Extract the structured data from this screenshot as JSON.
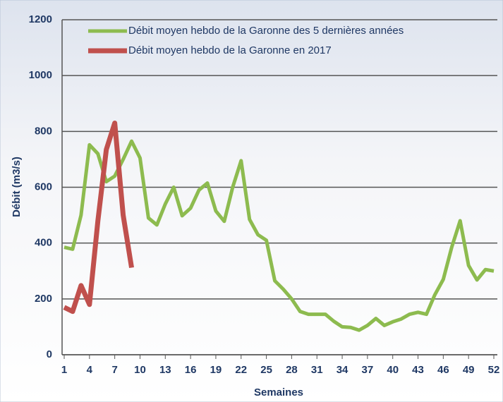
{
  "chart_data": {
    "type": "line",
    "x": [
      1,
      2,
      3,
      4,
      5,
      6,
      7,
      8,
      9,
      10,
      11,
      12,
      13,
      14,
      15,
      16,
      17,
      18,
      19,
      20,
      21,
      22,
      23,
      24,
      25,
      26,
      27,
      28,
      29,
      30,
      31,
      32,
      33,
      34,
      35,
      36,
      37,
      38,
      39,
      40,
      41,
      42,
      43,
      44,
      45,
      46,
      47,
      48,
      49,
      50,
      51,
      52
    ],
    "series": [
      {
        "name": "Débit moyen hebdo de la Garonne des 5 dernières années",
        "color": "#8dbb4f",
        "values": [
          385,
          378,
          500,
          752,
          720,
          620,
          640,
          700,
          765,
          705,
          490,
          465,
          540,
          600,
          498,
          525,
          590,
          615,
          515,
          478,
          600,
          695,
          485,
          430,
          410,
          265,
          235,
          200,
          155,
          145,
          145,
          145,
          120,
          100,
          98,
          88,
          105,
          130,
          105,
          118,
          128,
          145,
          152,
          145,
          215,
          270,
          385,
          480,
          320,
          268,
          305,
          300
        ]
      },
      {
        "name": "Débit moyen hebdo de la Garonne en 2017",
        "color": "#c0504d",
        "values": [
          170,
          155,
          248,
          180,
          480,
          735,
          830,
          500,
          312,
          null,
          null,
          null,
          null,
          null,
          null,
          null,
          null,
          null,
          null,
          null,
          null,
          null,
          null,
          null,
          null,
          null,
          null,
          null,
          null,
          null,
          null,
          null,
          null,
          null,
          null,
          null,
          null,
          null,
          null,
          null,
          null,
          null,
          null,
          null,
          null,
          null,
          null,
          null,
          null,
          null,
          null,
          null
        ]
      }
    ],
    "xlabel": "Semaines",
    "ylabel": "Débit (m3/s)",
    "xlim": [
      1,
      52
    ],
    "xticks": [
      1,
      4,
      7,
      10,
      13,
      16,
      19,
      22,
      25,
      28,
      31,
      34,
      37,
      40,
      43,
      46,
      49,
      52
    ],
    "ylim": [
      0,
      1200
    ],
    "yticks": [
      0,
      200,
      400,
      600,
      800,
      1000,
      1200
    ],
    "grid": true,
    "legend": "top"
  }
}
